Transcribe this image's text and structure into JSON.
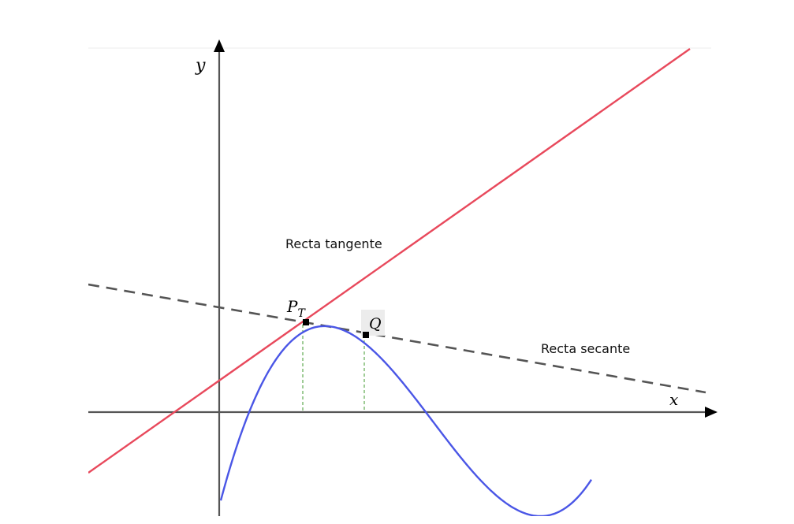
{
  "axes": {
    "x_label": "x",
    "y_label": "y"
  },
  "labels": {
    "tangent": "Recta tangente",
    "secant": "Recta secante",
    "point_p": "P",
    "point_p_sub": "T",
    "point_q": "Q"
  },
  "colors": {
    "curve": "#4a56e6",
    "tangent": "#e8495c",
    "secant": "#555555",
    "guide": "#3f9a2c",
    "axes": "#555555"
  }
}
